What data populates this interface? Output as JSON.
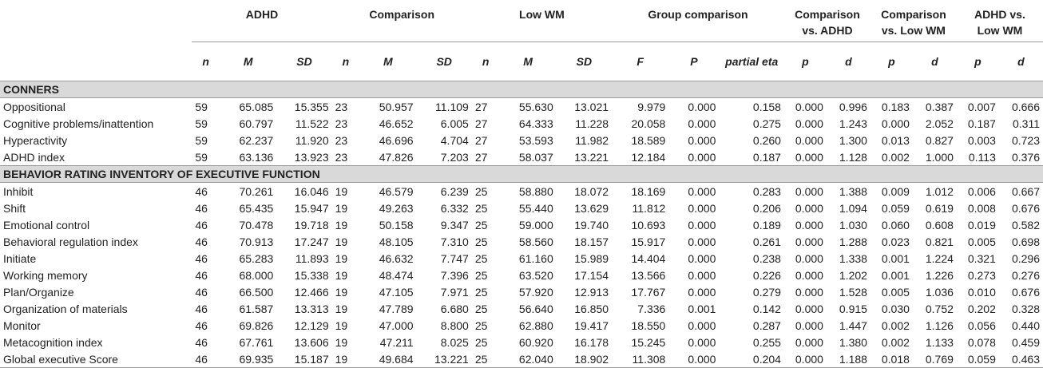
{
  "groups": {
    "adhd": "ADHD",
    "comparison": "Comparison",
    "lowwm": "Low WM",
    "groupcomp": "Group comparison",
    "comp_adhd_l1": "Comparison",
    "comp_adhd_l2": "vs. ADHD",
    "comp_lowwm_l1": "Comparison",
    "comp_lowwm_l2": "vs. Low WM",
    "adhd_lowwm_l1": "ADHD vs.",
    "adhd_lowwm_l2": "Low WM"
  },
  "subheaders": [
    "n",
    "M",
    "SD",
    "n",
    "M",
    "SD",
    "n",
    "M",
    "SD",
    "F",
    "P",
    "partial eta",
    "p",
    "d",
    "p",
    "d",
    "p",
    "d"
  ],
  "sections": [
    {
      "title": "CONNERS",
      "rows": [
        {
          "label": "Oppositional",
          "cells": [
            "59",
            "65.085",
            "15.355",
            "23",
            "50.957",
            "11.109",
            "27",
            "55.630",
            "13.021",
            "9.979",
            "0.000",
            "0.158",
            "0.000",
            "0.996",
            "0.183",
            "0.387",
            "0.007",
            "0.666"
          ]
        },
        {
          "label": "Cognitive problems/inattention",
          "cells": [
            "59",
            "60.797",
            "11.522",
            "23",
            "46.652",
            "6.005",
            "27",
            "64.333",
            "11.228",
            "20.058",
            "0.000",
            "0.275",
            "0.000",
            "1.243",
            "0.000",
            "2.052",
            "0.187",
            "0.311"
          ]
        },
        {
          "label": "Hyperactivity",
          "cells": [
            "59",
            "62.237",
            "11.920",
            "23",
            "46.696",
            "4.704",
            "27",
            "53.593",
            "11.982",
            "18.589",
            "0.000",
            "0.260",
            "0.000",
            "1.300",
            "0.013",
            "0.827",
            "0.003",
            "0.723"
          ]
        },
        {
          "label": "ADHD index",
          "cells": [
            "59",
            "63.136",
            "13.923",
            "23",
            "47.826",
            "7.203",
            "27",
            "58.037",
            "13.221",
            "12.184",
            "0.000",
            "0.187",
            "0.000",
            "1.128",
            "0.002",
            "1.000",
            "0.113",
            "0.376"
          ]
        }
      ]
    },
    {
      "title": "BEHAVIOR RATING INVENTORY OF EXECUTIVE FUNCTION",
      "rows": [
        {
          "label": "Inhibit",
          "cells": [
            "46",
            "70.261",
            "16.046",
            "19",
            "46.579",
            "6.239",
            "25",
            "58.880",
            "18.072",
            "18.169",
            "0.000",
            "0.283",
            "0.000",
            "1.388",
            "0.009",
            "1.012",
            "0.006",
            "0.667"
          ]
        },
        {
          "label": "Shift",
          "cells": [
            "46",
            "65.435",
            "15.947",
            "19",
            "49.263",
            "6.332",
            "25",
            "55.440",
            "13.629",
            "11.812",
            "0.000",
            "0.206",
            "0.000",
            "1.094",
            "0.059",
            "0.619",
            "0.008",
            "0.676"
          ]
        },
        {
          "label": "Emotional control",
          "cells": [
            "46",
            "70.478",
            "19.718",
            "19",
            "50.158",
            "9.347",
            "25",
            "59.000",
            "19.740",
            "10.693",
            "0.000",
            "0.189",
            "0.000",
            "1.030",
            "0.060",
            "0.608",
            "0.019",
            "0.582"
          ]
        },
        {
          "label": "Behavioral regulation index",
          "cells": [
            "46",
            "70.913",
            "17.247",
            "19",
            "48.105",
            "7.310",
            "25",
            "58.560",
            "18.157",
            "15.917",
            "0.000",
            "0.261",
            "0.000",
            "1.288",
            "0.023",
            "0.821",
            "0.005",
            "0.698"
          ]
        },
        {
          "label": "Initiate",
          "cells": [
            "46",
            "65.283",
            "11.893",
            "19",
            "46.632",
            "7.747",
            "25",
            "61.160",
            "15.989",
            "14.404",
            "0.000",
            "0.238",
            "0.000",
            "1.338",
            "0.001",
            "1.224",
            "0.321",
            "0.296"
          ]
        },
        {
          "label": "Working memory",
          "cells": [
            "46",
            "68.000",
            "15.338",
            "19",
            "48.474",
            "7.396",
            "25",
            "63.520",
            "17.154",
            "13.566",
            "0.000",
            "0.226",
            "0.000",
            "1.202",
            "0.001",
            "1.226",
            "0.273",
            "0.276"
          ]
        },
        {
          "label": "Plan/Organize",
          "cells": [
            "46",
            "66.500",
            "12.466",
            "19",
            "47.105",
            "7.971",
            "25",
            "57.920",
            "12.913",
            "17.767",
            "0.000",
            "0.279",
            "0.000",
            "1.528",
            "0.005",
            "1.036",
            "0.010",
            "0.676"
          ]
        },
        {
          "label": "Organization of materials",
          "cells": [
            "46",
            "61.587",
            "13.313",
            "19",
            "47.789",
            "6.680",
            "25",
            "56.640",
            "16.850",
            "7.336",
            "0.001",
            "0.142",
            "0.000",
            "0.915",
            "0.030",
            "0.752",
            "0.202",
            "0.328"
          ]
        },
        {
          "label": "Monitor",
          "cells": [
            "46",
            "69.826",
            "12.129",
            "19",
            "47.000",
            "8.800",
            "25",
            "62.880",
            "19.417",
            "18.550",
            "0.000",
            "0.287",
            "0.000",
            "1.447",
            "0.002",
            "1.126",
            "0.056",
            "0.440"
          ]
        },
        {
          "label": "Metacognition index",
          "cells": [
            "46",
            "67.761",
            "13.606",
            "19",
            "47.211",
            "8.025",
            "25",
            "60.920",
            "16.178",
            "15.245",
            "0.000",
            "0.255",
            "0.000",
            "1.380",
            "0.002",
            "1.133",
            "0.078",
            "0.459"
          ]
        },
        {
          "label": "Global executive Score",
          "cells": [
            "46",
            "69.935",
            "15.187",
            "19",
            "49.684",
            "13.221",
            "25",
            "62.040",
            "18.902",
            "11.308",
            "0.000",
            "0.204",
            "0.000",
            "1.188",
            "0.018",
            "0.769",
            "0.059",
            "0.463"
          ]
        }
      ]
    }
  ]
}
